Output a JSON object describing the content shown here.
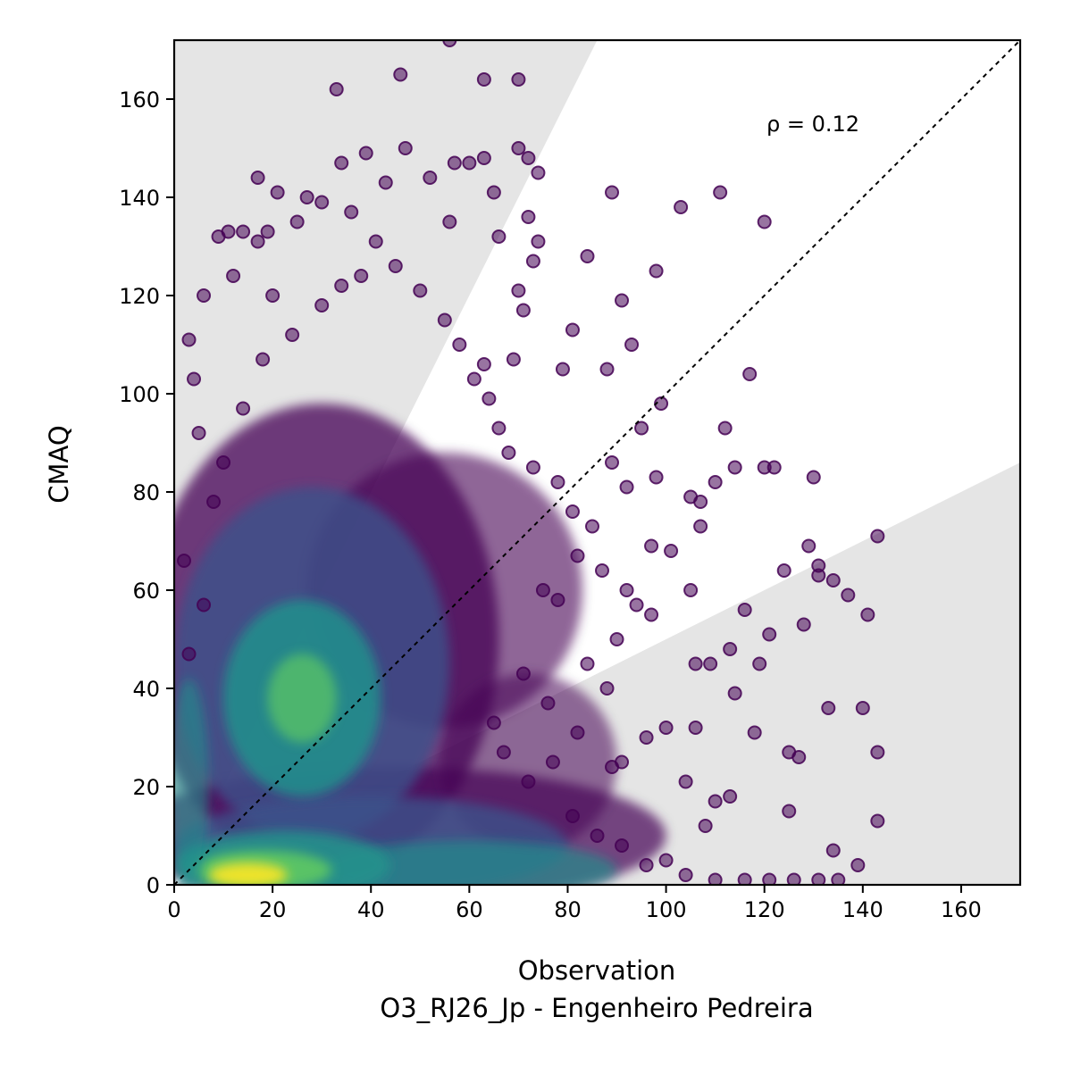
{
  "chart_data": {
    "type": "scatter",
    "title": "",
    "xlabel": "Observation",
    "xlabel_sub": "O3_RJ26_Jp - Engenheiro Pedreira",
    "ylabel": "CMAQ",
    "xlim": [
      0,
      172
    ],
    "ylim": [
      0,
      172
    ],
    "x_ticks": [
      "0",
      "20",
      "40",
      "60",
      "80",
      "100",
      "120",
      "140",
      "160"
    ],
    "y_ticks": [
      "0",
      "20",
      "40",
      "60",
      "80",
      "100",
      "120",
      "140",
      "160"
    ],
    "annotation": "ρ = 0.12",
    "reference_line": "1:1",
    "shaded_regions": [
      {
        "upper_slope_from_origin": 2.0,
        "note": "upper-left band"
      },
      {
        "upper_slope_from_origin": 0.5,
        "note": "lower-right band"
      }
    ],
    "colormap": [
      "#440154",
      "#3b528b",
      "#21918c",
      "#5ec962",
      "#fde725"
    ],
    "density_clusters": [
      {
        "x": 16,
        "y": 2,
        "density": 1.0
      },
      {
        "x": 26,
        "y": 38,
        "density": 0.65
      },
      {
        "x": 60,
        "y": 2,
        "density": 0.4
      }
    ],
    "outlier_points": [
      [
        56,
        172
      ],
      [
        46,
        165
      ],
      [
        63,
        164
      ],
      [
        70,
        164
      ],
      [
        33,
        162
      ],
      [
        47,
        150
      ],
      [
        70,
        150
      ],
      [
        39,
        149
      ],
      [
        63,
        148
      ],
      [
        72,
        148
      ],
      [
        57,
        147
      ],
      [
        60,
        147
      ],
      [
        34,
        147
      ],
      [
        74,
        145
      ],
      [
        52,
        144
      ],
      [
        17,
        144
      ],
      [
        43,
        143
      ],
      [
        27,
        140
      ],
      [
        21,
        141
      ],
      [
        65,
        141
      ],
      [
        89,
        141
      ],
      [
        111,
        141
      ],
      [
        120,
        135
      ],
      [
        103,
        138
      ],
      [
        72,
        136
      ],
      [
        56,
        135
      ],
      [
        11,
        133
      ],
      [
        9,
        132
      ],
      [
        14,
        133
      ],
      [
        19,
        133
      ],
      [
        74,
        131
      ],
      [
        66,
        132
      ],
      [
        73,
        127
      ],
      [
        84,
        128
      ],
      [
        98,
        125
      ],
      [
        91,
        119
      ],
      [
        70,
        121
      ],
      [
        71,
        117
      ],
      [
        81,
        113
      ],
      [
        63,
        106
      ],
      [
        93,
        110
      ],
      [
        69,
        107
      ],
      [
        79,
        105
      ],
      [
        117,
        104
      ],
      [
        88,
        105
      ],
      [
        99,
        98
      ],
      [
        95,
        93
      ],
      [
        112,
        93
      ],
      [
        114,
        85
      ],
      [
        120,
        85
      ],
      [
        122,
        85
      ],
      [
        130,
        83
      ],
      [
        89,
        86
      ],
      [
        92,
        81
      ],
      [
        110,
        82
      ],
      [
        105,
        79
      ],
      [
        107,
        78
      ],
      [
        143,
        71
      ],
      [
        107,
        73
      ],
      [
        124,
        64
      ],
      [
        131,
        65
      ],
      [
        129,
        69
      ],
      [
        134,
        62
      ],
      [
        128,
        53
      ],
      [
        131,
        63
      ],
      [
        141,
        55
      ],
      [
        137,
        59
      ],
      [
        121,
        51
      ],
      [
        119,
        45
      ],
      [
        114,
        39
      ],
      [
        118,
        31
      ],
      [
        133,
        36
      ],
      [
        140,
        36
      ],
      [
        125,
        27
      ],
      [
        127,
        26
      ],
      [
        143,
        27
      ],
      [
        125,
        15
      ],
      [
        143,
        13
      ],
      [
        134,
        7
      ],
      [
        139,
        4
      ],
      [
        135,
        1
      ],
      [
        131,
        1
      ],
      [
        126,
        1
      ],
      [
        121,
        1
      ],
      [
        116,
        1
      ],
      [
        110,
        1
      ],
      [
        104,
        2
      ],
      [
        100,
        5
      ],
      [
        96,
        4
      ],
      [
        91,
        8
      ],
      [
        86,
        10
      ],
      [
        81,
        14
      ],
      [
        106,
        32
      ],
      [
        110,
        17
      ],
      [
        108,
        12
      ],
      [
        113,
        18
      ],
      [
        104,
        21
      ],
      [
        100,
        32
      ],
      [
        96,
        30
      ],
      [
        91,
        25
      ],
      [
        89,
        24
      ],
      [
        106,
        45
      ],
      [
        109,
        45
      ],
      [
        113,
        48
      ],
      [
        116,
        56
      ],
      [
        105,
        60
      ],
      [
        97,
        55
      ],
      [
        90,
        50
      ],
      [
        87,
        64
      ],
      [
        92,
        60
      ],
      [
        94,
        57
      ],
      [
        97,
        69
      ],
      [
        101,
        68
      ],
      [
        98,
        83
      ],
      [
        85,
        73
      ],
      [
        82,
        67
      ],
      [
        78,
        58
      ],
      [
        84,
        45
      ],
      [
        88,
        40
      ],
      [
        76,
        37
      ],
      [
        82,
        31
      ],
      [
        77,
        25
      ],
      [
        72,
        21
      ],
      [
        67,
        27
      ],
      [
        65,
        33
      ],
      [
        71,
        43
      ],
      [
        75,
        60
      ],
      [
        73,
        85
      ],
      [
        78,
        82
      ],
      [
        81,
        76
      ],
      [
        66,
        93
      ],
      [
        68,
        88
      ],
      [
        64,
        99
      ],
      [
        61,
        103
      ],
      [
        58,
        110
      ],
      [
        55,
        115
      ],
      [
        50,
        121
      ],
      [
        45,
        126
      ],
      [
        41,
        131
      ],
      [
        36,
        137
      ],
      [
        30,
        139
      ],
      [
        25,
        135
      ],
      [
        17,
        131
      ],
      [
        12,
        124
      ],
      [
        6,
        120
      ],
      [
        3,
        111
      ],
      [
        4,
        103
      ],
      [
        5,
        92
      ],
      [
        8,
        78
      ],
      [
        2,
        66
      ],
      [
        6,
        57
      ],
      [
        3,
        47
      ],
      [
        10,
        86
      ],
      [
        14,
        97
      ],
      [
        18,
        107
      ],
      [
        24,
        112
      ],
      [
        30,
        118
      ],
      [
        34,
        122
      ],
      [
        38,
        124
      ],
      [
        20,
        120
      ]
    ]
  }
}
